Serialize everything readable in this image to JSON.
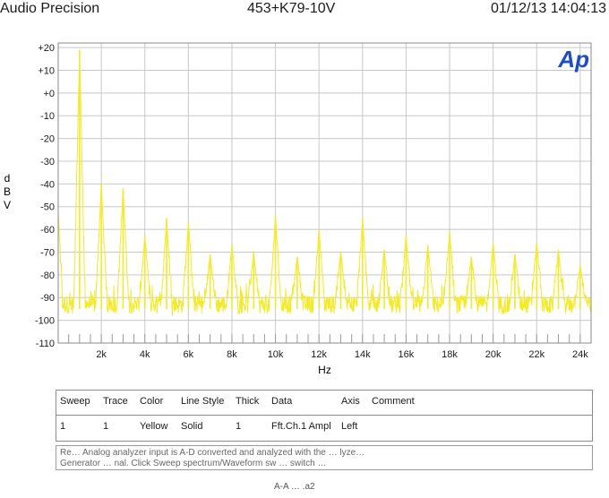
{
  "header": {
    "left": "Audio Precision",
    "center": "453+K79-10V",
    "right": "01/12/13 14:04:13"
  },
  "logo_text": "Ap",
  "colors": {
    "trace": "#f2ea2a",
    "grid": "#c8c8c8",
    "frame": "#8a8a8a",
    "logo": "#1d4fc4"
  },
  "chart_data": {
    "type": "line",
    "title": "",
    "xlabel": "Hz",
    "ylabel": "d B V",
    "xlim": [
      20,
      24500
    ],
    "ylim": [
      -110,
      22
    ],
    "x_ticks": [
      2000,
      4000,
      6000,
      8000,
      10000,
      12000,
      14000,
      16000,
      18000,
      20000,
      22000,
      24000
    ],
    "x_tick_labels": [
      "2k",
      "4k",
      "6k",
      "8k",
      "10k",
      "12k",
      "14k",
      "16k",
      "18k",
      "20k",
      "22k",
      "24k"
    ],
    "y_ticks": [
      20,
      10,
      0,
      -10,
      -20,
      -30,
      -40,
      -50,
      -60,
      -70,
      -80,
      -90,
      -100,
      -110
    ],
    "y_tick_labels": [
      "+20",
      "+10",
      "+0",
      "-10",
      "-20",
      "-30",
      "-40",
      "-50",
      "-60",
      "-70",
      "-80",
      "-90",
      "-100",
      "-110"
    ],
    "grid": true,
    "series": [
      {
        "color": "#f2ea2a",
        "noise_floor_db": -93,
        "peaks": [
          {
            "x": 1000,
            "y": 19
          },
          {
            "x": 2000,
            "y": -40
          },
          {
            "x": 3000,
            "y": -42
          },
          {
            "x": 4000,
            "y": -63
          },
          {
            "x": 5000,
            "y": -55
          },
          {
            "x": 6000,
            "y": -57
          },
          {
            "x": 7000,
            "y": -71
          },
          {
            "x": 8000,
            "y": -67
          },
          {
            "x": 9000,
            "y": -70
          },
          {
            "x": 10000,
            "y": -54
          },
          {
            "x": 11000,
            "y": -72
          },
          {
            "x": 12000,
            "y": -60
          },
          {
            "x": 13000,
            "y": -70
          },
          {
            "x": 14000,
            "y": -55
          },
          {
            "x": 15000,
            "y": -69
          },
          {
            "x": 16000,
            "y": -63
          },
          {
            "x": 17000,
            "y": -67
          },
          {
            "x": 18000,
            "y": -61
          },
          {
            "x": 19000,
            "y": -72
          },
          {
            "x": 20000,
            "y": -66
          },
          {
            "x": 21000,
            "y": -71
          },
          {
            "x": 22000,
            "y": -66
          },
          {
            "x": 23000,
            "y": -69
          },
          {
            "x": 24000,
            "y": -76
          }
        ]
      }
    ]
  },
  "legend_table": {
    "headers": [
      "Sweep",
      "Trace",
      "Color",
      "Line Style",
      "Thick",
      "Data",
      "Axis",
      "Comment"
    ],
    "rows": [
      [
        "1",
        "1",
        "Yellow",
        "Solid",
        "1",
        "Fft.Ch.1 Ampl",
        "Left",
        ""
      ]
    ]
  },
  "notes": {
    "line1": "Re… Analog analyzer input is A-D converted and analyzed with the … lyze…",
    "line2": "Generator … nal. Click Sweep spectrum/Waveform sw … switch …",
    "footer": "A-A … .a2"
  }
}
